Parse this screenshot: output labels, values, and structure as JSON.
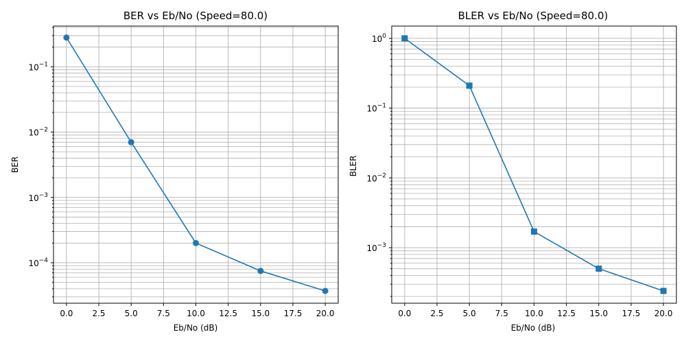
{
  "chart_data": [
    {
      "type": "line",
      "title": "BER vs Eb/No (Speed=80.0)",
      "xlabel": "Eb/No (dB)",
      "ylabel": "BER",
      "yscale": "log",
      "xlim": [
        -1,
        21
      ],
      "ylim": [
        2.4e-05,
        0.42
      ],
      "xticks": [
        0,
        2.5,
        5,
        7.5,
        10,
        12.5,
        15,
        17.5,
        20
      ],
      "xtick_labels": [
        "0.0",
        "2.5",
        "5.0",
        "7.5",
        "10.0",
        "12.5",
        "15.0",
        "17.5",
        "20.0"
      ],
      "ytick_labels": [
        {
          "base": "10",
          "exp": "−4",
          "value": 0.0001
        },
        {
          "base": "10",
          "exp": "−3",
          "value": 0.001
        },
        {
          "base": "10",
          "exp": "−2",
          "value": 0.01
        },
        {
          "base": "10",
          "exp": "−1",
          "value": 0.1
        }
      ],
      "grid": "major and minor",
      "marker": "circle",
      "color": "#1f77b4",
      "x": [
        0,
        5,
        10,
        15,
        20
      ],
      "y": [
        0.28,
        0.007,
        0.0002,
        7.5e-05,
        3.7e-05
      ]
    },
    {
      "type": "line",
      "title": "BLER vs Eb/No (Speed=80.0)",
      "xlabel": "Eb/No (dB)",
      "ylabel": "BLER",
      "yscale": "log",
      "xlim": [
        -1,
        21
      ],
      "ylim": [
        0.00016,
        1.5
      ],
      "xticks": [
        0,
        2.5,
        5,
        7.5,
        10,
        12.5,
        15,
        17.5,
        20
      ],
      "xtick_labels": [
        "0.0",
        "2.5",
        "5.0",
        "7.5",
        "10.0",
        "12.5",
        "15.0",
        "17.5",
        "20.0"
      ],
      "ytick_labels": [
        {
          "base": "10",
          "exp": "−3",
          "value": 0.001
        },
        {
          "base": "10",
          "exp": "−2",
          "value": 0.01
        },
        {
          "base": "10",
          "exp": "−1",
          "value": 0.1
        },
        {
          "base": "10",
          "exp": "0",
          "value": 1
        }
      ],
      "grid": "major and minor",
      "marker": "square",
      "color": "#1f77b4",
      "x": [
        0,
        5,
        10,
        15,
        20
      ],
      "y": [
        1.0,
        0.21,
        0.0017,
        0.0005,
        0.00024
      ]
    }
  ]
}
